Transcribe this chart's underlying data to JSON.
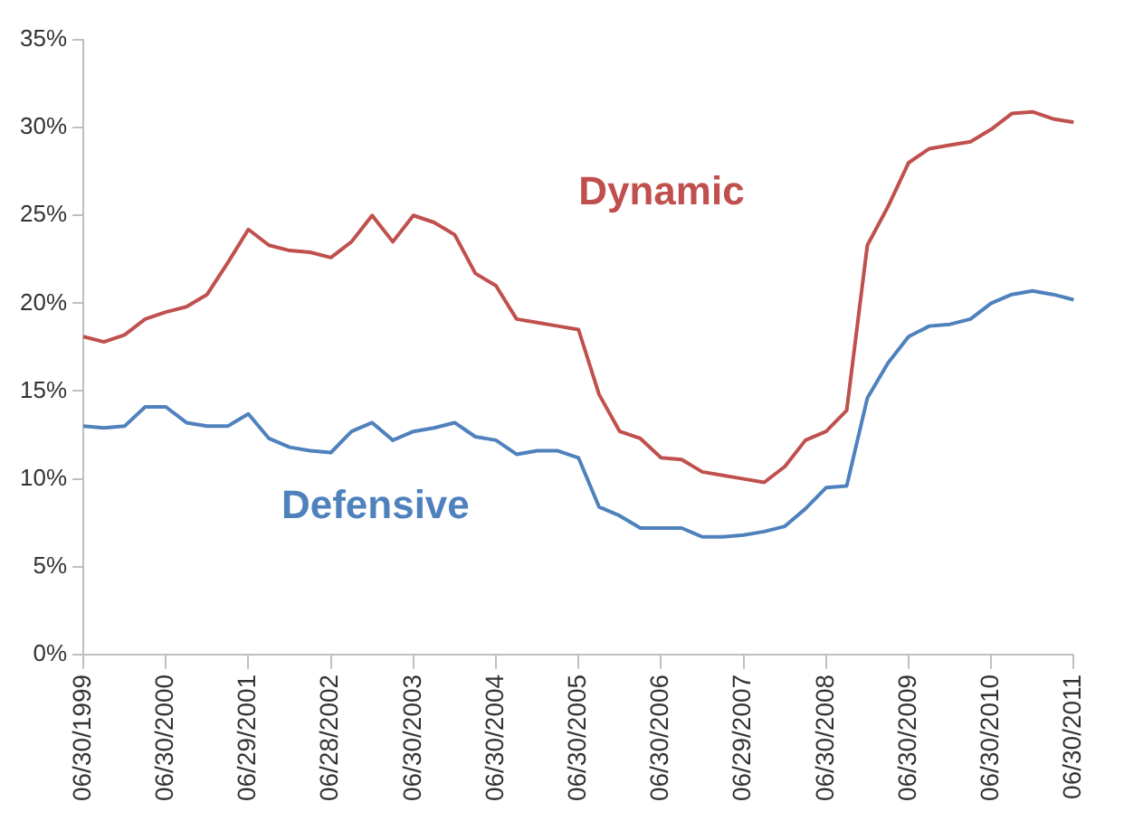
{
  "chart_data": {
    "type": "line",
    "categories": [
      "06/30/1999",
      null,
      null,
      null,
      "06/30/2000",
      null,
      null,
      null,
      "06/29/2001",
      null,
      null,
      null,
      "06/28/2002",
      null,
      null,
      null,
      "06/30/2003",
      null,
      null,
      null,
      "06/30/2004",
      null,
      null,
      null,
      "06/30/2005",
      null,
      null,
      null,
      "06/30/2006",
      null,
      null,
      null,
      "06/29/2007",
      null,
      null,
      null,
      "06/30/2008",
      null,
      null,
      null,
      "06/30/2009",
      null,
      null,
      null,
      "06/30/2010",
      null,
      null,
      null,
      "06/30/2011"
    ],
    "series": [
      {
        "name": "Dynamic",
        "color": "#c0504d",
        "values": [
          18.1,
          17.8,
          18.2,
          19.1,
          19.5,
          19.8,
          20.5,
          22.3,
          24.2,
          23.3,
          23.0,
          22.9,
          22.6,
          23.5,
          25.0,
          23.5,
          25.0,
          24.6,
          23.9,
          21.7,
          21.0,
          19.1,
          18.9,
          18.7,
          18.5,
          14.8,
          12.7,
          12.3,
          11.2,
          11.1,
          10.4,
          10.2,
          10.0,
          9.8,
          10.7,
          12.2,
          12.7,
          13.9,
          23.3,
          25.5,
          28.0,
          28.8,
          29.0,
          29.2,
          29.9,
          30.8,
          30.9,
          30.5,
          30.3
        ]
      },
      {
        "name": "Defensive",
        "color": "#4f81bd",
        "values": [
          13.0,
          12.9,
          13.0,
          14.1,
          14.1,
          13.2,
          13.0,
          13.0,
          13.7,
          12.3,
          11.8,
          11.6,
          11.5,
          12.7,
          13.2,
          12.2,
          12.7,
          12.9,
          13.2,
          12.4,
          12.2,
          11.4,
          11.6,
          11.6,
          11.2,
          8.4,
          7.9,
          7.2,
          7.2,
          7.2,
          6.7,
          6.7,
          6.8,
          7.0,
          7.3,
          8.3,
          9.5,
          9.6,
          14.6,
          16.6,
          18.1,
          18.7,
          18.8,
          19.1,
          20.0,
          20.5,
          20.7,
          20.5,
          20.2
        ]
      }
    ],
    "ylim": [
      0,
      35
    ],
    "yticks": [
      {
        "value": 0,
        "label": "0%"
      },
      {
        "value": 5,
        "label": "5%"
      },
      {
        "value": 10,
        "label": "10%"
      },
      {
        "value": 15,
        "label": "15%"
      },
      {
        "value": 20,
        "label": "20%"
      },
      {
        "value": 25,
        "label": "25%"
      },
      {
        "value": 30,
        "label": "30%"
      },
      {
        "value": 35,
        "label": "35%"
      }
    ],
    "grid": false,
    "legend": false,
    "marker": "none",
    "line_style": "solid"
  }
}
